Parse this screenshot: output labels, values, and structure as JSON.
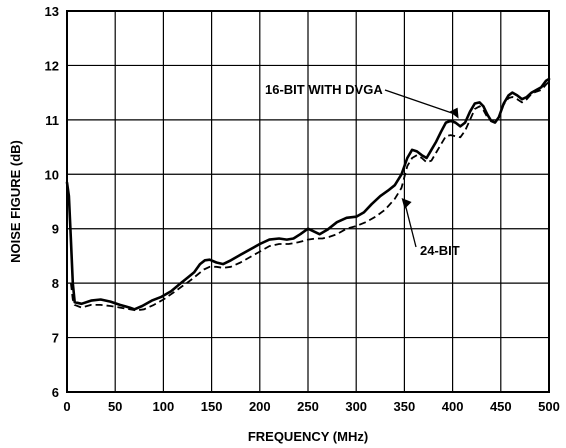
{
  "chart_data": {
    "type": "line",
    "title": "",
    "xlabel": "FREQUENCY (MHz)",
    "ylabel": "NOISE FIGURE (dB)",
    "xlim": [
      0,
      500
    ],
    "ylim": [
      6,
      13
    ],
    "x_ticks": [
      0,
      50,
      100,
      150,
      200,
      250,
      300,
      350,
      400,
      450,
      500
    ],
    "y_ticks": [
      6,
      7,
      8,
      9,
      10,
      11,
      12,
      13
    ],
    "grid": true,
    "legend": "none",
    "series": [
      {
        "name": "16-BIT WITH DVGA",
        "style": "solid",
        "color": "#000000",
        "x": [
          0,
          2,
          4,
          6,
          8,
          15,
          25,
          35,
          45,
          55,
          65,
          70,
          78,
          88,
          98,
          108,
          118,
          125,
          132,
          138,
          143,
          148,
          155,
          162,
          170,
          180,
          190,
          200,
          210,
          220,
          228,
          235,
          242,
          250,
          256,
          262,
          270,
          280,
          290,
          300,
          308,
          316,
          325,
          333,
          340,
          347,
          353,
          358,
          363,
          368,
          373,
          378,
          383,
          388,
          393,
          398,
          403,
          408,
          413,
          418,
          423,
          428,
          432,
          436,
          440,
          444,
          448,
          453,
          458,
          462,
          467,
          472,
          477,
          482,
          487,
          492,
          497,
          500
        ],
        "y": [
          9.85,
          9.6,
          8.8,
          8.0,
          7.65,
          7.62,
          7.68,
          7.7,
          7.66,
          7.6,
          7.55,
          7.52,
          7.58,
          7.68,
          7.75,
          7.85,
          8.0,
          8.1,
          8.2,
          8.35,
          8.42,
          8.43,
          8.38,
          8.35,
          8.42,
          8.52,
          8.62,
          8.72,
          8.8,
          8.82,
          8.8,
          8.82,
          8.9,
          9.0,
          8.95,
          8.9,
          8.98,
          9.12,
          9.2,
          9.22,
          9.3,
          9.45,
          9.6,
          9.7,
          9.8,
          10.0,
          10.3,
          10.45,
          10.42,
          10.35,
          10.3,
          10.45,
          10.6,
          10.78,
          10.95,
          10.98,
          10.95,
          10.88,
          10.95,
          11.15,
          11.3,
          11.32,
          11.25,
          11.1,
          10.98,
          10.95,
          11.05,
          11.3,
          11.45,
          11.5,
          11.45,
          11.38,
          11.42,
          11.5,
          11.55,
          11.6,
          11.72,
          11.75
        ]
      },
      {
        "name": "24-BIT",
        "style": "dashed",
        "color": "#000000",
        "x": [
          4,
          6,
          8,
          15,
          25,
          35,
          45,
          55,
          65,
          72,
          80,
          90,
          100,
          110,
          120,
          128,
          135,
          142,
          148,
          155,
          162,
          170,
          180,
          190,
          200,
          210,
          220,
          230,
          240,
          250,
          258,
          265,
          272,
          280,
          290,
          300,
          310,
          320,
          330,
          340,
          347,
          353,
          358,
          363,
          368,
          373,
          378,
          383,
          388,
          393,
          398,
          403,
          408,
          413,
          418,
          423,
          428,
          432,
          436,
          440,
          444,
          448,
          453,
          458,
          462,
          467,
          472,
          477,
          482,
          487,
          492,
          497,
          500
        ],
        "y": [
          8.0,
          7.7,
          7.6,
          7.55,
          7.6,
          7.6,
          7.58,
          7.55,
          7.52,
          7.5,
          7.52,
          7.6,
          7.7,
          7.82,
          7.95,
          8.05,
          8.15,
          8.25,
          8.3,
          8.3,
          8.28,
          8.3,
          8.38,
          8.48,
          8.58,
          8.68,
          8.72,
          8.72,
          8.75,
          8.8,
          8.82,
          8.82,
          8.85,
          8.9,
          9.0,
          9.05,
          9.12,
          9.22,
          9.35,
          9.55,
          9.75,
          10.15,
          10.3,
          10.35,
          10.3,
          10.22,
          10.25,
          10.4,
          10.55,
          10.7,
          10.72,
          10.7,
          10.68,
          10.8,
          11.0,
          11.2,
          11.25,
          11.18,
          11.05,
          10.98,
          10.95,
          11.05,
          11.28,
          11.4,
          11.42,
          11.38,
          11.32,
          11.38,
          11.48,
          11.52,
          11.55,
          11.65,
          11.7
        ]
      }
    ],
    "annotations": [
      {
        "text": "16-BIT WITH DVGA",
        "target": [
          400,
          10.95
        ]
      },
      {
        "text": "24-BIT",
        "target": [
          345,
          9.6
        ]
      }
    ]
  }
}
